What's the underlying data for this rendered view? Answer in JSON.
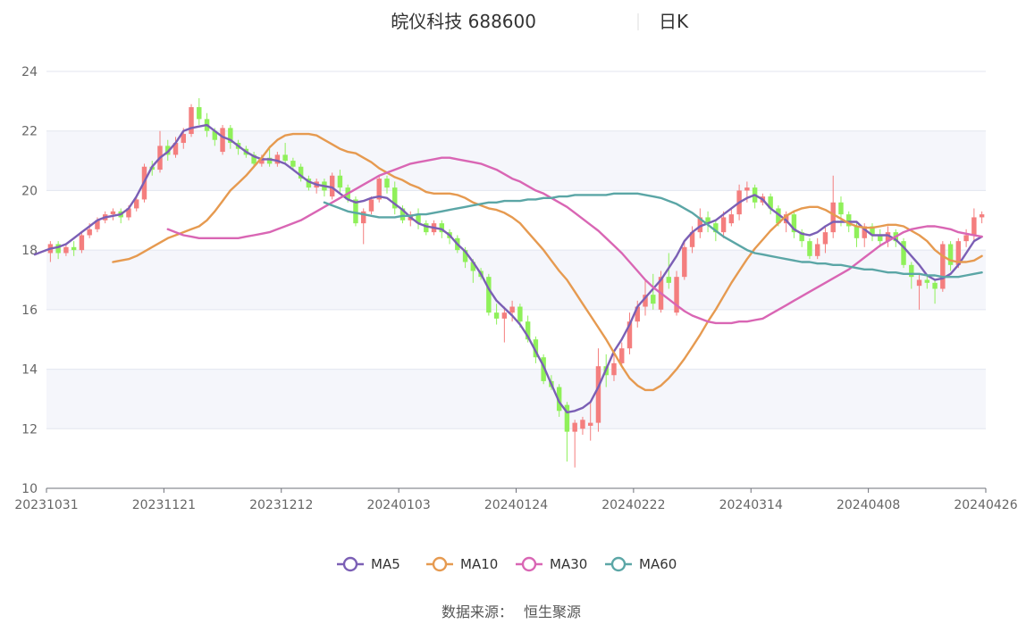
{
  "header": {
    "name": "皖仪科技 688600",
    "period": "日K"
  },
  "source_label": "数据来源：",
  "source_name": "恒生聚源",
  "chart_data": {
    "type": "candlestick",
    "title": "皖仪科技 688600",
    "subtitle": "日K",
    "ylim": [
      10,
      24
    ],
    "y_ticks": [
      10,
      12,
      14,
      16,
      18,
      20,
      22,
      24
    ],
    "x_ticks": [
      "20231031",
      "20231121",
      "20231212",
      "20240103",
      "20240124",
      "20240222",
      "20240314",
      "20240408",
      "20240426"
    ],
    "grid": true,
    "legend_position": "bottom",
    "colors": {
      "up": "#f47e7e",
      "down": "#8ff05a",
      "MA5": "#7b5fb5",
      "MA10": "#e69a50",
      "MA30": "#d966b4",
      "MA60": "#5ba6a6"
    },
    "legend": [
      "MA5",
      "MA10",
      "MA30",
      "MA60"
    ],
    "candles": [
      {
        "o": 17.9,
        "c": 18.2,
        "h": 18.3,
        "l": 17.6
      },
      {
        "o": 18.2,
        "c": 17.9,
        "h": 18.3,
        "l": 17.7
      },
      {
        "o": 17.9,
        "c": 18.1,
        "h": 18.2,
        "l": 17.8
      },
      {
        "o": 18.1,
        "c": 18.0,
        "h": 18.3,
        "l": 17.8
      },
      {
        "o": 18.0,
        "c": 18.5,
        "h": 18.6,
        "l": 17.9
      },
      {
        "o": 18.5,
        "c": 18.7,
        "h": 18.9,
        "l": 18.4
      },
      {
        "o": 18.7,
        "c": 19.0,
        "h": 19.1,
        "l": 18.6
      },
      {
        "o": 19.0,
        "c": 19.2,
        "h": 19.3,
        "l": 18.9
      },
      {
        "o": 19.2,
        "c": 19.3,
        "h": 19.4,
        "l": 19.0
      },
      {
        "o": 19.3,
        "c": 19.1,
        "h": 19.4,
        "l": 18.9
      },
      {
        "o": 19.1,
        "c": 19.4,
        "h": 19.5,
        "l": 19.0
      },
      {
        "o": 19.4,
        "c": 19.7,
        "h": 19.8,
        "l": 19.3
      },
      {
        "o": 19.7,
        "c": 20.8,
        "h": 20.9,
        "l": 19.6
      },
      {
        "o": 20.8,
        "c": 20.7,
        "h": 21.0,
        "l": 20.5
      },
      {
        "o": 20.7,
        "c": 21.5,
        "h": 22.0,
        "l": 20.6
      },
      {
        "o": 21.5,
        "c": 21.2,
        "h": 21.7,
        "l": 21.0
      },
      {
        "o": 21.2,
        "c": 21.6,
        "h": 21.8,
        "l": 21.1
      },
      {
        "o": 21.6,
        "c": 21.9,
        "h": 22.1,
        "l": 21.4
      },
      {
        "o": 21.9,
        "c": 22.8,
        "h": 22.9,
        "l": 21.8
      },
      {
        "o": 22.8,
        "c": 22.4,
        "h": 23.1,
        "l": 22.2
      },
      {
        "o": 22.4,
        "c": 22.0,
        "h": 22.6,
        "l": 21.8
      },
      {
        "o": 22.0,
        "c": 21.7,
        "h": 22.1,
        "l": 21.5
      },
      {
        "o": 21.3,
        "c": 22.1,
        "h": 22.2,
        "l": 21.2
      },
      {
        "o": 22.1,
        "c": 21.6,
        "h": 22.2,
        "l": 21.4
      },
      {
        "o": 21.6,
        "c": 21.4,
        "h": 21.7,
        "l": 21.2
      },
      {
        "o": 21.4,
        "c": 21.2,
        "h": 21.5,
        "l": 21.1
      },
      {
        "o": 21.2,
        "c": 20.9,
        "h": 21.3,
        "l": 20.8
      },
      {
        "o": 20.9,
        "c": 21.1,
        "h": 21.2,
        "l": 20.8
      },
      {
        "o": 21.1,
        "c": 20.9,
        "h": 21.5,
        "l": 20.8
      },
      {
        "o": 20.9,
        "c": 21.2,
        "h": 21.3,
        "l": 20.8
      },
      {
        "o": 21.2,
        "c": 21.0,
        "h": 21.6,
        "l": 20.9
      },
      {
        "o": 21.0,
        "c": 20.8,
        "h": 21.1,
        "l": 20.7
      },
      {
        "o": 20.8,
        "c": 20.4,
        "h": 20.9,
        "l": 20.3
      },
      {
        "o": 20.4,
        "c": 20.1,
        "h": 20.5,
        "l": 20.0
      },
      {
        "o": 20.1,
        "c": 20.3,
        "h": 20.4,
        "l": 19.9
      },
      {
        "o": 20.3,
        "c": 20.0,
        "h": 20.4,
        "l": 19.8
      },
      {
        "o": 19.8,
        "c": 20.5,
        "h": 20.6,
        "l": 19.7
      },
      {
        "o": 20.5,
        "c": 20.1,
        "h": 20.7,
        "l": 19.9
      },
      {
        "o": 20.1,
        "c": 19.7,
        "h": 20.2,
        "l": 19.6
      },
      {
        "o": 19.7,
        "c": 18.9,
        "h": 19.8,
        "l": 18.8
      },
      {
        "o": 18.9,
        "c": 19.3,
        "h": 19.4,
        "l": 18.2
      },
      {
        "o": 19.3,
        "c": 19.7,
        "h": 19.8,
        "l": 19.2
      },
      {
        "o": 19.7,
        "c": 20.4,
        "h": 20.5,
        "l": 19.6
      },
      {
        "o": 20.4,
        "c": 20.1,
        "h": 20.5,
        "l": 19.9
      },
      {
        "o": 20.1,
        "c": 19.4,
        "h": 20.3,
        "l": 19.2
      },
      {
        "o": 19.4,
        "c": 19.0,
        "h": 19.5,
        "l": 18.9
      },
      {
        "o": 19.0,
        "c": 19.2,
        "h": 19.3,
        "l": 18.8
      },
      {
        "o": 19.2,
        "c": 18.9,
        "h": 19.4,
        "l": 18.7
      },
      {
        "o": 18.9,
        "c": 18.6,
        "h": 19.0,
        "l": 18.5
      },
      {
        "o": 18.6,
        "c": 18.9,
        "h": 19.0,
        "l": 18.5
      },
      {
        "o": 18.9,
        "c": 18.6,
        "h": 19.0,
        "l": 18.4
      },
      {
        "o": 18.6,
        "c": 18.4,
        "h": 18.7,
        "l": 18.2
      },
      {
        "o": 18.4,
        "c": 18.0,
        "h": 18.5,
        "l": 17.9
      },
      {
        "o": 18.0,
        "c": 17.6,
        "h": 18.1,
        "l": 17.4
      },
      {
        "o": 17.6,
        "c": 17.3,
        "h": 17.7,
        "l": 16.9
      },
      {
        "o": 17.3,
        "c": 17.1,
        "h": 17.4,
        "l": 17.0
      },
      {
        "o": 17.1,
        "c": 15.9,
        "h": 17.2,
        "l": 15.8
      },
      {
        "o": 15.9,
        "c": 15.7,
        "h": 16.2,
        "l": 15.5
      },
      {
        "o": 15.7,
        "c": 15.9,
        "h": 16.1,
        "l": 14.9
      },
      {
        "o": 15.9,
        "c": 16.1,
        "h": 16.3,
        "l": 15.6
      },
      {
        "o": 16.1,
        "c": 15.6,
        "h": 16.2,
        "l": 15.4
      },
      {
        "o": 15.6,
        "c": 15.0,
        "h": 15.8,
        "l": 14.9
      },
      {
        "o": 15.0,
        "c": 14.4,
        "h": 15.1,
        "l": 14.2
      },
      {
        "o": 14.4,
        "c": 13.6,
        "h": 14.5,
        "l": 13.5
      },
      {
        "o": 13.6,
        "c": 13.4,
        "h": 13.8,
        "l": 13.3
      },
      {
        "o": 13.4,
        "c": 12.6,
        "h": 13.5,
        "l": 12.4
      },
      {
        "o": 12.8,
        "c": 11.9,
        "h": 12.9,
        "l": 10.9
      },
      {
        "o": 11.9,
        "c": 12.2,
        "h": 12.3,
        "l": 10.7
      },
      {
        "o": 12.0,
        "c": 12.3,
        "h": 12.4,
        "l": 11.8
      },
      {
        "o": 12.1,
        "c": 12.2,
        "h": 12.9,
        "l": 11.6
      },
      {
        "o": 12.2,
        "c": 14.1,
        "h": 14.7,
        "l": 11.9
      },
      {
        "o": 14.1,
        "c": 13.8,
        "h": 14.5,
        "l": 13.4
      },
      {
        "o": 13.8,
        "c": 14.2,
        "h": 14.5,
        "l": 13.6
      },
      {
        "o": 14.2,
        "c": 14.7,
        "h": 14.9,
        "l": 14.1
      },
      {
        "o": 14.7,
        "c": 15.6,
        "h": 15.9,
        "l": 14.5
      },
      {
        "o": 15.6,
        "c": 16.1,
        "h": 16.3,
        "l": 15.4
      },
      {
        "o": 16.1,
        "c": 16.5,
        "h": 17.0,
        "l": 15.8
      },
      {
        "o": 16.5,
        "c": 16.2,
        "h": 17.2,
        "l": 16.0
      },
      {
        "o": 16.0,
        "c": 17.1,
        "h": 17.3,
        "l": 15.9
      },
      {
        "o": 17.1,
        "c": 16.9,
        "h": 17.9,
        "l": 16.7
      },
      {
        "o": 15.9,
        "c": 17.1,
        "h": 17.3,
        "l": 15.8
      },
      {
        "o": 17.1,
        "c": 18.1,
        "h": 18.3,
        "l": 17.0
      },
      {
        "o": 18.1,
        "c": 18.6,
        "h": 18.8,
        "l": 17.9
      },
      {
        "o": 18.6,
        "c": 19.1,
        "h": 19.4,
        "l": 18.4
      },
      {
        "o": 19.1,
        "c": 18.9,
        "h": 19.3,
        "l": 18.6
      },
      {
        "o": 18.9,
        "c": 18.6,
        "h": 19.0,
        "l": 18.3
      },
      {
        "o": 18.6,
        "c": 19.1,
        "h": 19.3,
        "l": 18.4
      },
      {
        "o": 18.9,
        "c": 19.2,
        "h": 19.4,
        "l": 18.8
      },
      {
        "o": 19.2,
        "c": 20.0,
        "h": 20.2,
        "l": 19.0
      },
      {
        "o": 20.0,
        "c": 20.1,
        "h": 20.3,
        "l": 19.6
      },
      {
        "o": 20.1,
        "c": 19.6,
        "h": 20.2,
        "l": 19.4
      },
      {
        "o": 19.6,
        "c": 19.8,
        "h": 19.9,
        "l": 19.5
      },
      {
        "o": 19.8,
        "c": 19.4,
        "h": 19.9,
        "l": 19.2
      },
      {
        "o": 19.4,
        "c": 18.9,
        "h": 19.5,
        "l": 18.8
      },
      {
        "o": 18.9,
        "c": 19.2,
        "h": 19.3,
        "l": 18.6
      },
      {
        "o": 19.2,
        "c": 18.6,
        "h": 19.3,
        "l": 18.4
      },
      {
        "o": 18.6,
        "c": 18.3,
        "h": 18.7,
        "l": 18.1
      },
      {
        "o": 18.3,
        "c": 17.8,
        "h": 18.4,
        "l": 17.7
      },
      {
        "o": 17.8,
        "c": 18.2,
        "h": 18.4,
        "l": 17.7
      },
      {
        "o": 18.2,
        "c": 18.6,
        "h": 18.8,
        "l": 17.9
      },
      {
        "o": 18.6,
        "c": 19.6,
        "h": 20.5,
        "l": 18.4
      },
      {
        "o": 19.6,
        "c": 19.2,
        "h": 19.8,
        "l": 18.8
      },
      {
        "o": 19.2,
        "c": 18.8,
        "h": 19.3,
        "l": 18.6
      },
      {
        "o": 18.8,
        "c": 18.4,
        "h": 18.9,
        "l": 18.1
      },
      {
        "o": 18.4,
        "c": 18.8,
        "h": 18.9,
        "l": 18.1
      },
      {
        "o": 18.8,
        "c": 18.5,
        "h": 18.9,
        "l": 18.3
      },
      {
        "o": 18.5,
        "c": 18.3,
        "h": 18.7,
        "l": 18.1
      },
      {
        "o": 18.3,
        "c": 18.6,
        "h": 18.8,
        "l": 18.1
      },
      {
        "o": 18.6,
        "c": 18.3,
        "h": 18.7,
        "l": 18.1
      },
      {
        "o": 18.3,
        "c": 17.5,
        "h": 18.4,
        "l": 17.4
      },
      {
        "o": 17.5,
        "c": 17.1,
        "h": 17.6,
        "l": 16.7
      },
      {
        "o": 16.8,
        "c": 17.0,
        "h": 17.2,
        "l": 16.0
      },
      {
        "o": 17.0,
        "c": 16.9,
        "h": 17.2,
        "l": 16.7
      },
      {
        "o": 16.9,
        "c": 16.7,
        "h": 17.0,
        "l": 16.2
      },
      {
        "o": 16.7,
        "c": 18.2,
        "h": 18.3,
        "l": 16.6
      },
      {
        "o": 18.2,
        "c": 17.5,
        "h": 18.3,
        "l": 17.3
      },
      {
        "o": 17.5,
        "c": 18.3,
        "h": 18.4,
        "l": 17.4
      },
      {
        "o": 18.3,
        "c": 18.5,
        "h": 18.7,
        "l": 18.1
      },
      {
        "o": 18.5,
        "c": 19.1,
        "h": 19.4,
        "l": 18.3
      },
      {
        "o": 19.1,
        "c": 19.2,
        "h": 19.3,
        "l": 18.9
      }
    ],
    "MA5": [
      17.85,
      17.95,
      18.05,
      18.1,
      18.2,
      18.4,
      18.6,
      18.8,
      19.0,
      19.1,
      19.15,
      19.2,
      19.4,
      19.8,
      20.3,
      20.8,
      21.1,
      21.3,
      21.6,
      22.0,
      22.1,
      22.15,
      22.2,
      22.0,
      21.8,
      21.7,
      21.5,
      21.3,
      21.15,
      21.05,
      21.05,
      21.0,
      20.9,
      20.7,
      20.5,
      20.3,
      20.2,
      20.15,
      20.1,
      19.9,
      19.7,
      19.6,
      19.65,
      19.75,
      19.8,
      19.75,
      19.55,
      19.35,
      19.1,
      18.9,
      18.8,
      18.75,
      18.7,
      18.5,
      18.2,
      17.95,
      17.6,
      17.2,
      16.7,
      16.3,
      16.05,
      15.8,
      15.5,
      15.1,
      14.6,
      14.1,
      13.5,
      12.9,
      12.55,
      12.6,
      12.7,
      12.9,
      13.4,
      14.0,
      14.6,
      15.0,
      15.5,
      16.1,
      16.4,
      16.7,
      17.0,
      17.4,
      17.8,
      18.3,
      18.6,
      18.8,
      18.9,
      19.0,
      19.2,
      19.4,
      19.6,
      19.75,
      19.85,
      19.7,
      19.4,
      19.2,
      19.0,
      18.7,
      18.55,
      18.5,
      18.6,
      18.8,
      18.95,
      18.95,
      18.95,
      18.95,
      18.7,
      18.5,
      18.5,
      18.5,
      18.35,
      18.1,
      17.8,
      17.5,
      17.15,
      17.0,
      17.05,
      17.2,
      17.5,
      17.9,
      18.3,
      18.45
    ],
    "MA10": [
      17.6,
      17.65,
      17.7,
      17.8,
      17.95,
      18.1,
      18.25,
      18.4,
      18.5,
      18.6,
      18.7,
      18.8,
      19.0,
      19.3,
      19.65,
      20.0,
      20.25,
      20.5,
      20.8,
      21.1,
      21.45,
      21.7,
      21.85,
      21.9,
      21.9,
      21.9,
      21.85,
      21.7,
      21.55,
      21.4,
      21.3,
      21.25,
      21.1,
      20.95,
      20.75,
      20.6,
      20.45,
      20.35,
      20.2,
      20.1,
      19.95,
      19.9,
      19.9,
      19.9,
      19.85,
      19.75,
      19.6,
      19.5,
      19.4,
      19.35,
      19.25,
      19.1,
      18.9,
      18.6,
      18.3,
      18.0,
      17.65,
      17.3,
      17.0,
      16.6,
      16.2,
      15.8,
      15.4,
      15.0,
      14.55,
      14.1,
      13.7,
      13.45,
      13.3,
      13.3,
      13.45,
      13.7,
      14.0,
      14.35,
      14.75,
      15.15,
      15.6,
      16.0,
      16.45,
      16.9,
      17.3,
      17.7,
      18.05,
      18.35,
      18.65,
      18.9,
      19.15,
      19.3,
      19.4,
      19.45,
      19.45,
      19.35,
      19.2,
      19.05,
      18.9,
      18.8,
      18.75,
      18.75,
      18.8,
      18.85,
      18.85,
      18.8,
      18.65,
      18.5,
      18.3,
      18.0,
      17.8,
      17.65,
      17.6,
      17.6,
      17.65,
      17.8
    ],
    "MA30": [
      18.7,
      18.6,
      18.5,
      18.45,
      18.4,
      18.4,
      18.4,
      18.4,
      18.4,
      18.4,
      18.45,
      18.5,
      18.55,
      18.6,
      18.7,
      18.8,
      18.9,
      19.0,
      19.15,
      19.3,
      19.45,
      19.6,
      19.75,
      19.9,
      20.05,
      20.2,
      20.35,
      20.5,
      20.6,
      20.7,
      20.8,
      20.9,
      20.95,
      21.0,
      21.05,
      21.1,
      21.1,
      21.05,
      21.0,
      20.95,
      20.9,
      20.8,
      20.7,
      20.55,
      20.4,
      20.3,
      20.15,
      20.0,
      19.9,
      19.75,
      19.6,
      19.45,
      19.25,
      19.05,
      18.85,
      18.65,
      18.4,
      18.15,
      17.9,
      17.6,
      17.3,
      17.0,
      16.75,
      16.55,
      16.35,
      16.15,
      15.95,
      15.8,
      15.7,
      15.6,
      15.55,
      15.55,
      15.55,
      15.6,
      15.6,
      15.65,
      15.7,
      15.85,
      16.0,
      16.15,
      16.3,
      16.45,
      16.6,
      16.75,
      16.9,
      17.05,
      17.2,
      17.35,
      17.55,
      17.75,
      17.95,
      18.15,
      18.3,
      18.45,
      18.6,
      18.7,
      18.75,
      18.8,
      18.8,
      18.75,
      18.7,
      18.6,
      18.55,
      18.5,
      18.45
    ],
    "MA60": [
      19.6,
      19.5,
      19.4,
      19.3,
      19.25,
      19.2,
      19.15,
      19.1,
      19.1,
      19.1,
      19.15,
      19.15,
      19.2,
      19.2,
      19.25,
      19.3,
      19.35,
      19.4,
      19.45,
      19.5,
      19.55,
      19.6,
      19.6,
      19.65,
      19.65,
      19.65,
      19.7,
      19.7,
      19.75,
      19.75,
      19.8,
      19.8,
      19.85,
      19.85,
      19.85,
      19.85,
      19.85,
      19.9,
      19.9,
      19.9,
      19.9,
      19.85,
      19.8,
      19.75,
      19.65,
      19.55,
      19.4,
      19.25,
      19.05,
      18.85,
      18.65,
      18.45,
      18.3,
      18.15,
      18.0,
      17.9,
      17.85,
      17.8,
      17.75,
      17.7,
      17.65,
      17.6,
      17.6,
      17.55,
      17.55,
      17.5,
      17.5,
      17.45,
      17.4,
      17.35,
      17.35,
      17.3,
      17.25,
      17.25,
      17.2,
      17.2,
      17.2,
      17.15,
      17.15,
      17.1,
      17.1,
      17.1,
      17.15,
      17.2,
      17.25
    ]
  }
}
